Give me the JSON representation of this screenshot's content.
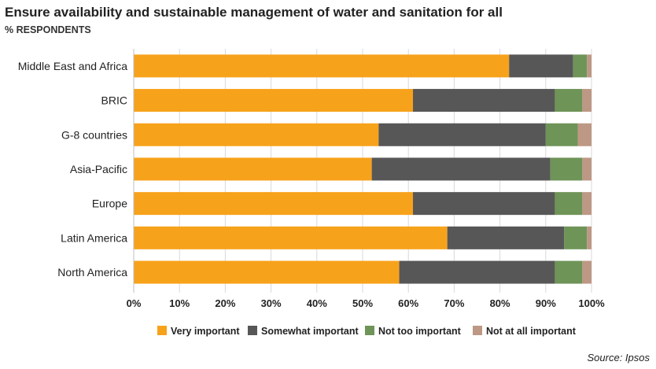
{
  "colors": {
    "very": "#F7A21B",
    "somewhat": "#575757",
    "nottoo": "#6E9457",
    "notatall": "#BD9884",
    "grid": "#d9d9d9",
    "text": "#222222"
  },
  "source": "Source: Ipsos",
  "chart_data": {
    "type": "bar",
    "orientation": "horizontal",
    "stacked": true,
    "title": "Ensure availability and sustainable management of water and sanitation for all",
    "subtitle": "% RESPONDENTS",
    "xlim": [
      0,
      100
    ],
    "xticks": [
      "0%",
      "10%",
      "20%",
      "30%",
      "40%",
      "50%",
      "60%",
      "70%",
      "80%",
      "90%",
      "100%"
    ],
    "categories": [
      "Middle East and Africa",
      "BRIC",
      "G-8 countries",
      "Asia-Pacific",
      "Europe",
      "Latin America",
      "North America"
    ],
    "series": [
      {
        "name": "Very important",
        "key": "very",
        "values": [
          82,
          61,
          53.5,
          52,
          61,
          68.5,
          58
        ]
      },
      {
        "name": "Somewhat important",
        "key": "somewhat",
        "values": [
          14,
          31,
          36.5,
          39,
          31,
          25.5,
          34
        ]
      },
      {
        "name": "Not too important",
        "key": "nottoo",
        "values": [
          3,
          6,
          7,
          7,
          6,
          5,
          6
        ]
      },
      {
        "name": "Not at all important",
        "key": "notatall",
        "values": [
          1,
          2,
          3,
          2,
          2,
          1,
          2
        ]
      }
    ],
    "legend_position": "bottom"
  }
}
